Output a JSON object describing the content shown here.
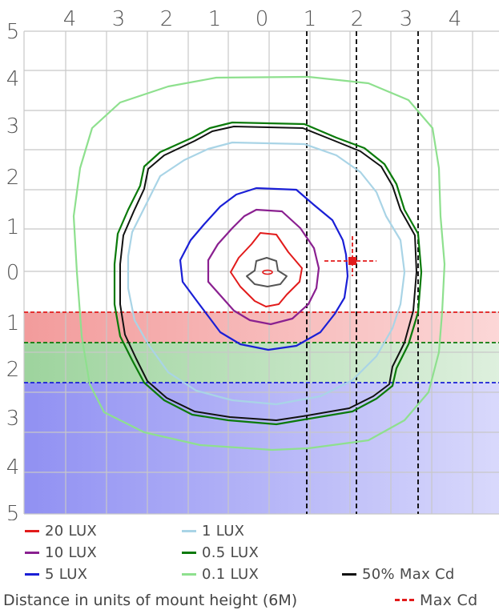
{
  "axis": {
    "top_ticks": [
      "4",
      "3",
      "2",
      "1",
      "0",
      "1",
      "2",
      "3",
      "4"
    ],
    "left_ticks": [
      "5",
      "4",
      "3",
      "2",
      "1",
      "0",
      "1",
      "2",
      "3",
      "4",
      "5"
    ]
  },
  "bands": [
    {
      "name": "red-band",
      "color": "#f39898"
    },
    {
      "name": "green-band",
      "color": "#9fd19f"
    },
    {
      "name": "blue-band",
      "color": "#8e8ef2"
    }
  ],
  "legend": {
    "lux20": {
      "label": "20 LUX",
      "color": "#e21b1b"
    },
    "lux10": {
      "label": "10 LUX",
      "color": "#8a2090"
    },
    "lux5": {
      "label": "5 LUX",
      "color": "#1a1fd6"
    },
    "lux1": {
      "label": "1 LUX",
      "color": "#a9d4e6"
    },
    "lux05": {
      "label": "0.5 LUX",
      "color": "#0a7a0a"
    },
    "lux01": {
      "label": "0.1 LUX",
      "color": "#8ee08e"
    },
    "maxcd50": {
      "label": "50% Max Cd",
      "color": "#111111"
    },
    "maxcd": {
      "label": "Max Cd",
      "color": "#e21b1b"
    }
  },
  "caption": "Distance in units of mount height (6M)"
}
